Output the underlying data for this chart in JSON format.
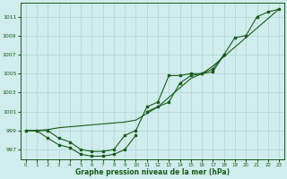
{
  "x": [
    0,
    1,
    2,
    3,
    4,
    5,
    6,
    7,
    8,
    9,
    10,
    11,
    12,
    13,
    14,
    15,
    16,
    17,
    18,
    19,
    20,
    21,
    22,
    23
  ],
  "line_main": [
    999,
    999,
    999,
    998.2,
    997.8,
    997.0,
    996.8,
    996.8,
    997.0,
    998.5,
    999.0,
    1001.5,
    1002.0,
    1004.8,
    1004.8,
    1005.0,
    1005.0,
    1005.2,
    1007.0,
    1008.8,
    1009.0,
    1011.0,
    1011.5,
    1011.8
  ],
  "line_lower": [
    999,
    999,
    998.2,
    997.5,
    997.2,
    996.5,
    996.3,
    996.3,
    996.5,
    997.0,
    998.5,
    null,
    null,
    null,
    null,
    null,
    null,
    null,
    null,
    null,
    null,
    null,
    null,
    null
  ],
  "line_straight": [
    999,
    999.0,
    999.1,
    999.3,
    999.4,
    999.5,
    999.6,
    999.7,
    999.8,
    999.9,
    1000.1,
    1000.8,
    1001.5,
    1002.5,
    1003.5,
    1004.5,
    1005.0,
    1005.8,
    1006.8,
    1007.8,
    1008.8,
    1009.8,
    1010.8,
    1011.8
  ],
  "line_mid": [
    null,
    null,
    null,
    null,
    null,
    null,
    null,
    null,
    null,
    null,
    null,
    1001.0,
    1001.5,
    1002.0,
    1004.0,
    1004.8,
    1005.0,
    1005.5,
    1007.0,
    null,
    null,
    null,
    null,
    null
  ],
  "bg_color": "#d0ecec",
  "line_color": "#1a5c1a",
  "grid_color": "#b0d4d4",
  "yticks": [
    997,
    999,
    1001,
    1003,
    1005,
    1007,
    1009,
    1011
  ],
  "xlabel": "Graphe pression niveau de la mer (hPa)",
  "ylim": [
    996.0,
    1012.5
  ],
  "xlim": [
    -0.5,
    23.5
  ]
}
